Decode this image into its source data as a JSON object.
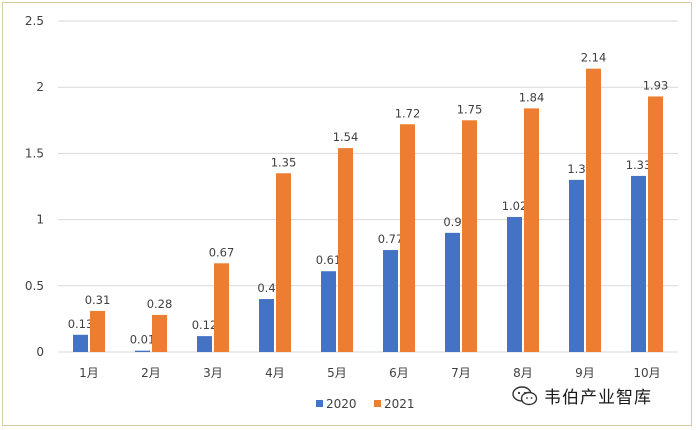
{
  "chart_data": {
    "type": "bar",
    "title": "",
    "xlabel": "",
    "ylabel": "",
    "ylim": [
      0,
      2.5
    ],
    "yticks": [
      "0",
      "0.5",
      "1",
      "1.5",
      "2",
      "2.5"
    ],
    "categories": [
      "1月",
      "2月",
      "3月",
      "4月",
      "5月",
      "6月",
      "7月",
      "8月",
      "9月",
      "10月"
    ],
    "series": [
      {
        "name": "2020",
        "color": "#4472c4",
        "values": [
          0.13,
          0.01,
          0.12,
          0.4,
          0.61,
          0.77,
          0.9,
          1.02,
          1.3,
          1.33
        ],
        "labels": [
          "0.13",
          "0.01",
          "0.12",
          "0.4",
          "0.61",
          "0.77",
          "0.9",
          "1.02",
          "1.3",
          "1.33"
        ]
      },
      {
        "name": "2021",
        "color": "#ed7d31",
        "values": [
          0.31,
          0.28,
          0.67,
          1.35,
          1.54,
          1.72,
          1.75,
          1.84,
          2.14,
          1.93
        ],
        "labels": [
          "0.31",
          "0.28",
          "0.67",
          "1.35",
          "1.54",
          "1.72",
          "1.75",
          "1.84",
          "2.14",
          "1.93"
        ]
      }
    ],
    "grid": true,
    "legend_position": "bottom"
  },
  "watermark": {
    "text": "韦伯产业智库",
    "icon": "wechat-icon"
  }
}
